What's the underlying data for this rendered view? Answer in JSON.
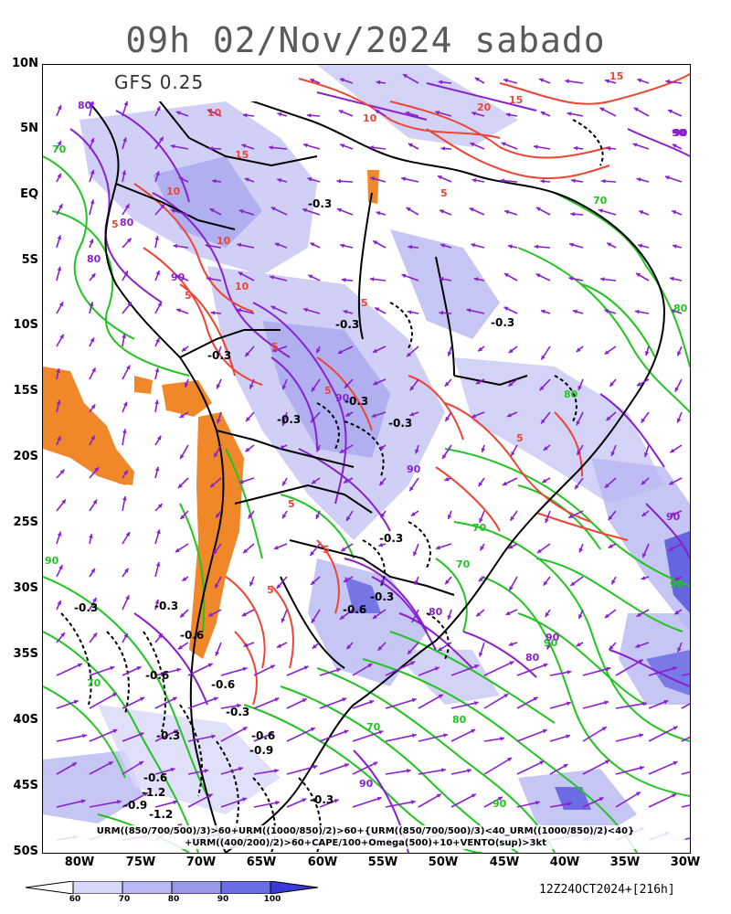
{
  "header": {
    "title": "09h 02/Nov/2024 sabado"
  },
  "model": {
    "label": "GFS 0.25"
  },
  "latitude_labels": [
    "10N",
    "5N",
    "EQ",
    "5S",
    "10S",
    "15S",
    "20S",
    "25S",
    "30S",
    "35S",
    "40S",
    "45S",
    "50S"
  ],
  "longitude_labels": [
    "80W",
    "75W",
    "70W",
    "65W",
    "60W",
    "55W",
    "50W",
    "45W",
    "40W",
    "35W",
    "30W"
  ],
  "formula": {
    "line1": "URM((850/700/500)/3)>60+URM((1000/850)/2)>60+{URM((850/700/500)/3)<40_URM((1000/850)/2)<40}",
    "line2": "+URM((400/200)/2)>60+CAPE/100+Omega(500)+10+VENTO(sup)>3kt"
  },
  "colorbar": {
    "ticks": [
      "60",
      "70",
      "80",
      "90",
      "100"
    ],
    "colors": [
      "#d8d8fa",
      "#b8b8f2",
      "#9898ea",
      "#6c6ce4",
      "#3a3ad8"
    ]
  },
  "run": {
    "label": "12Z24OCT2024+[216h]"
  },
  "colors": {
    "humidity_green": "#22c422",
    "humidity_purple": "#8a1fd0",
    "cape_red": "#ee4433",
    "omega_black": "#000000",
    "orange_mask": "#f0882a",
    "wind_vectors": "#8a1fd0"
  },
  "contour_labels": {
    "cape": [
      "15",
      "10",
      "20",
      "15",
      "10",
      "15",
      "5",
      "10",
      "10",
      "5",
      "10",
      "5",
      "5",
      "5",
      "5",
      "5",
      "5",
      "5",
      "5"
    ],
    "humidity": [
      "90",
      "80",
      "70",
      "80",
      "80",
      "90",
      "90",
      "70",
      "90",
      "80",
      "90",
      "80",
      "70",
      "90",
      "90",
      "90",
      "80",
      "70",
      "90",
      "90",
      "70",
      "80",
      "90",
      "70",
      "90",
      "80",
      "90"
    ],
    "omega": [
      "-0.3",
      "-0.3",
      "-0.3",
      "-0.3",
      "-0.3",
      "-0.3",
      "-0.3",
      "-0.3",
      "-0.6",
      "-0.3",
      "-0.6",
      "-0.6",
      "-0.6",
      "-0.3",
      "-0.3",
      "-0.6",
      "-0.9",
      "-0.3",
      "-0.3",
      "-0.6",
      "-1.2",
      "-0.9",
      "-1.2",
      "-0.3"
    ]
  }
}
